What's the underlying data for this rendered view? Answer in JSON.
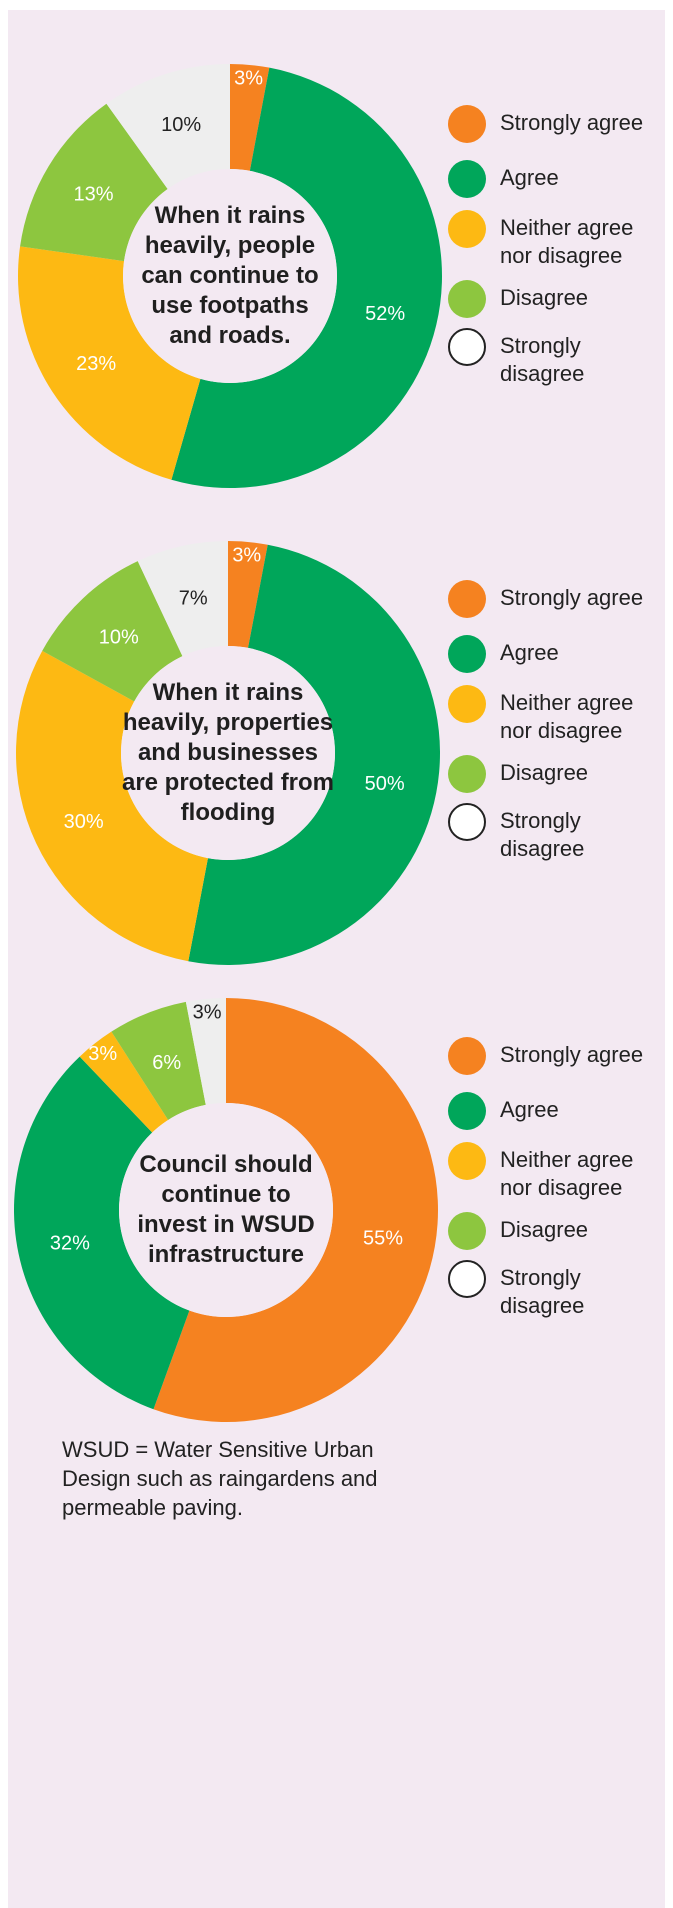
{
  "legend": {
    "items": [
      {
        "label": "Strongly agree",
        "color": "#f58220"
      },
      {
        "label": "Agree",
        "color": "#00a65a"
      },
      {
        "label": "Neither agree nor disagree",
        "color": "#fdb913"
      },
      {
        "label": "Disagree",
        "color": "#8dc63f"
      },
      {
        "label": "Strongly disagree",
        "color": "#ffffff"
      }
    ]
  },
  "chart_data": [
    {
      "type": "pie",
      "donut": true,
      "title": "When it rains heavily, people can continue to use footpaths and roads.",
      "categories": [
        "Strongly agree",
        "Agree",
        "Neither agree nor disagree",
        "Disagree",
        "Strongly disagree"
      ],
      "values": [
        3,
        52,
        23,
        13,
        10
      ],
      "labels": [
        "3%",
        "52%",
        "23%",
        "13%",
        "10%"
      ],
      "colors": [
        "#f58220",
        "#00a65a",
        "#fdb913",
        "#8dc63f",
        "#eeeeee"
      ],
      "legend_placement": "right"
    },
    {
      "type": "pie",
      "donut": true,
      "title": "When it rains heavily, properties and businesses are protected from flooding",
      "categories": [
        "Strongly agree",
        "Agree",
        "Neither agree nor disagree",
        "Disagree",
        "Strongly disagree"
      ],
      "values": [
        3,
        50,
        30,
        10,
        7
      ],
      "labels": [
        "3%",
        "50%",
        "30%",
        "10%",
        "7%"
      ],
      "colors": [
        "#f58220",
        "#00a65a",
        "#fdb913",
        "#8dc63f",
        "#eeeeee"
      ],
      "legend_placement": "right"
    },
    {
      "type": "pie",
      "donut": true,
      "title": "Council should continue to invest in WSUD infrastructure",
      "categories": [
        "Strongly agree",
        "Agree",
        "Neither agree nor disagree",
        "Disagree",
        "Strongly disagree"
      ],
      "values": [
        55,
        32,
        3,
        6,
        3
      ],
      "labels": [
        "55%",
        "32%",
        "3%",
        "6%",
        "3%"
      ],
      "colors": [
        "#f58220",
        "#00a65a",
        "#fdb913",
        "#8dc63f",
        "#eeeeee"
      ],
      "legend_placement": "right"
    }
  ],
  "note": "WSUD = Water Sensitive Urban Design such as raingardens and permeable paving."
}
